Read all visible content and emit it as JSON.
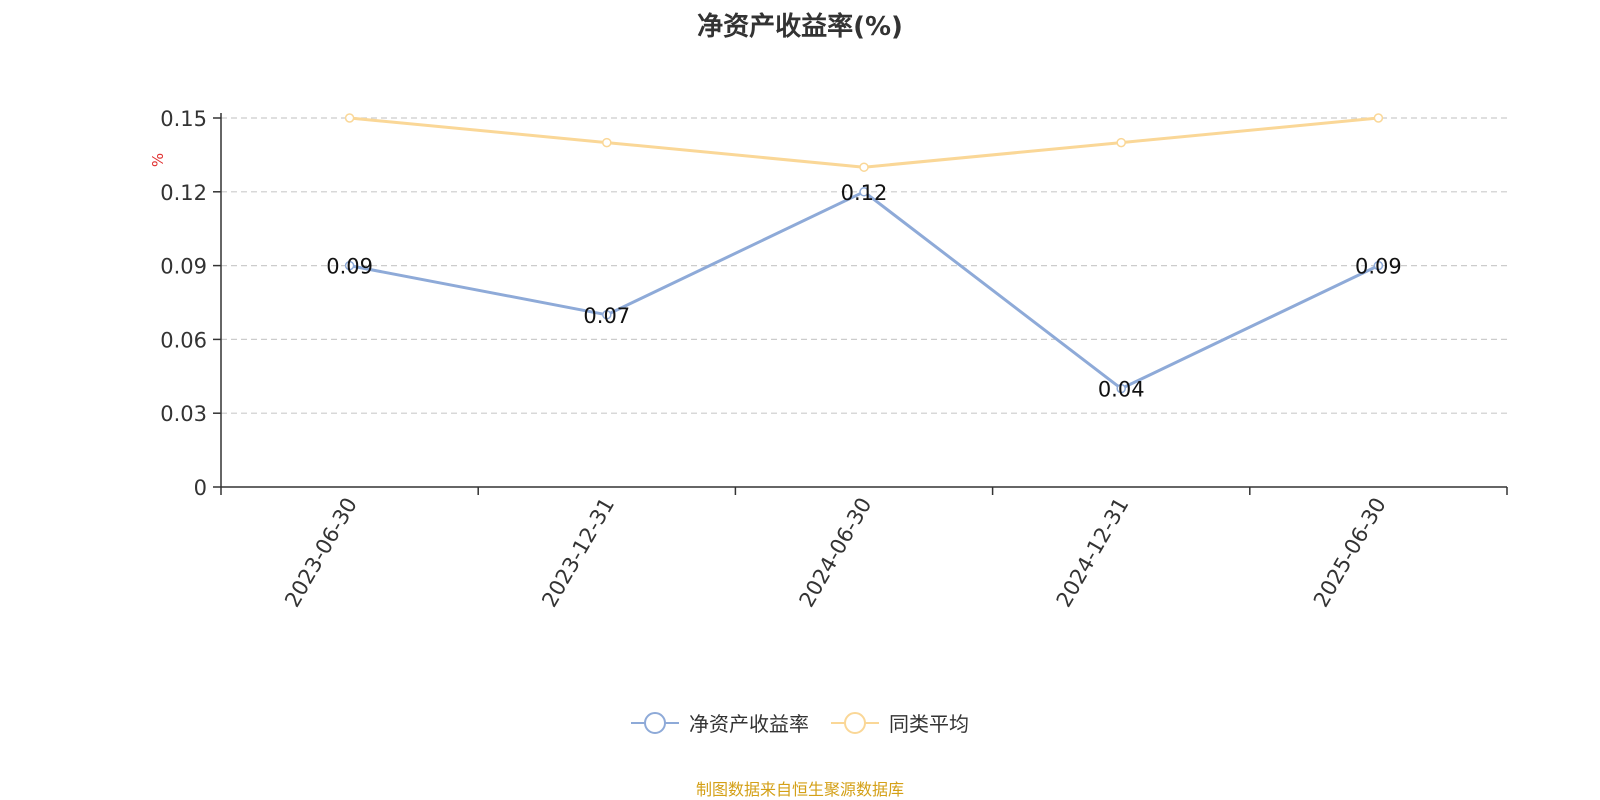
{
  "chart_data": {
    "type": "line",
    "title": "净资产收益率(%)",
    "ylabel": "%",
    "categories": [
      "2023-06-30",
      "2023-12-31",
      "2024-06-30",
      "2024-12-31",
      "2025-06-30"
    ],
    "series": [
      {
        "name": "净资产收益率",
        "values": [
          0.09,
          0.07,
          0.12,
          0.04,
          0.09
        ],
        "color": "#8eaad8",
        "show_labels": true
      },
      {
        "name": "同类平均",
        "values": [
          0.15,
          0.14,
          0.13,
          0.14,
          0.15
        ],
        "color": "#fad797",
        "show_labels": false
      }
    ],
    "yticks": [
      0,
      0.03,
      0.06,
      0.09,
      0.12,
      0.15
    ],
    "ytick_labels": [
      "0",
      "0.03",
      "0.06",
      "0.09",
      "0.12",
      "0.15"
    ],
    "ylim": [
      0,
      0.15
    ],
    "grid": true,
    "legend_position": "bottom-center"
  },
  "source_note": "制图数据来自恒生聚源数据库",
  "colors": {
    "axis": "#333333",
    "grid": "#cccccc",
    "ylabel": "#e03030",
    "source": "#d4a017"
  }
}
